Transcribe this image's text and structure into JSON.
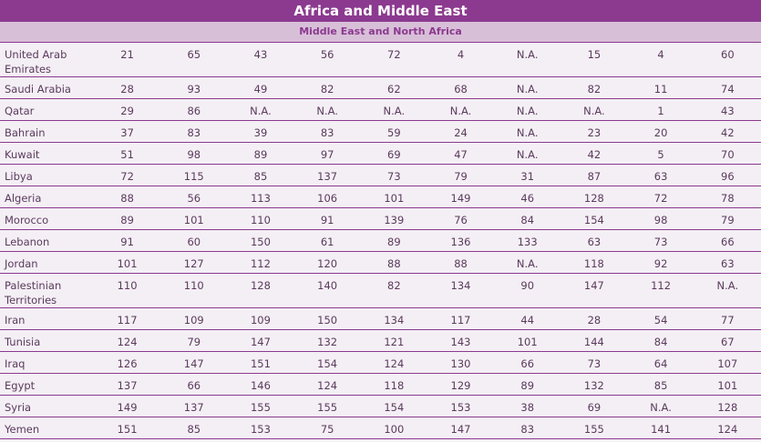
{
  "header": {
    "title": "Africa and Middle East",
    "subtitle": "Middle East and North Africa"
  },
  "table": {
    "rows": [
      [
        "United Arab Emirates",
        21,
        65,
        43,
        56,
        72,
        4,
        "N.A.",
        15,
        4,
        60
      ],
      [
        "Saudi Arabia",
        28,
        93,
        49,
        82,
        62,
        68,
        "N.A.",
        82,
        11,
        74
      ],
      [
        "Qatar",
        29,
        86,
        "N.A.",
        "N.A.",
        "N.A.",
        "N.A.",
        "N.A.",
        "N.A.",
        1,
        43
      ],
      [
        "Bahrain",
        37,
        83,
        39,
        83,
        59,
        24,
        "N.A.",
        23,
        20,
        42
      ],
      [
        "Kuwait",
        51,
        98,
        89,
        97,
        69,
        47,
        "N.A.",
        42,
        5,
        70
      ],
      [
        "Libya",
        72,
        115,
        85,
        137,
        73,
        79,
        31,
        87,
        63,
        96
      ],
      [
        "Algeria",
        88,
        56,
        113,
        106,
        101,
        149,
        46,
        128,
        72,
        78
      ],
      [
        "Morocco",
        89,
        101,
        110,
        91,
        139,
        76,
        84,
        154,
        98,
        79
      ],
      [
        "Lebanon",
        91,
        60,
        150,
        61,
        89,
        136,
        133,
        63,
        73,
        66
      ],
      [
        "Jordan",
        101,
        127,
        112,
        120,
        88,
        88,
        "N.A.",
        118,
        92,
        63
      ],
      [
        "Palestinian Territories",
        110,
        110,
        128,
        140,
        82,
        134,
        90,
        147,
        112,
        "N.A."
      ],
      [
        "Iran",
        117,
        109,
        109,
        150,
        134,
        117,
        44,
        28,
        54,
        77
      ],
      [
        "Tunisia",
        124,
        79,
        147,
        132,
        121,
        143,
        101,
        144,
        84,
        67
      ],
      [
        "Iraq",
        126,
        147,
        151,
        154,
        124,
        130,
        66,
        73,
        64,
        107
      ],
      [
        "Egypt",
        137,
        66,
        146,
        124,
        118,
        129,
        89,
        132,
        85,
        101
      ],
      [
        "Syria",
        149,
        137,
        155,
        155,
        154,
        153,
        38,
        69,
        "N.A.",
        128
      ],
      [
        "Yemen",
        151,
        85,
        153,
        75,
        100,
        147,
        83,
        155,
        141,
        124
      ]
    ]
  }
}
